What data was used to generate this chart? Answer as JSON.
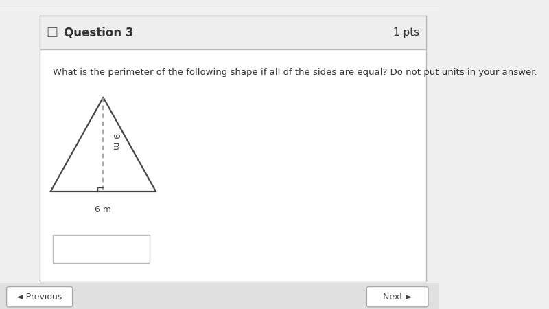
{
  "title": "Question 3",
  "pts": "1 pts",
  "question_text": "What is the perimeter of the following shape if all of the sides are equal? Do not put units in your answer.",
  "triangle": {
    "base_label": "6 m",
    "height_label": "9 m"
  },
  "bg_color": "#f0f0f0",
  "header_color": "#eeeeee",
  "box_bg": "#ffffff",
  "text_color": "#333333",
  "line_color": "#444444",
  "dashed_color": "#999999",
  "border_color": "#bbbbbb",
  "nav_color": "#e0e0e0"
}
